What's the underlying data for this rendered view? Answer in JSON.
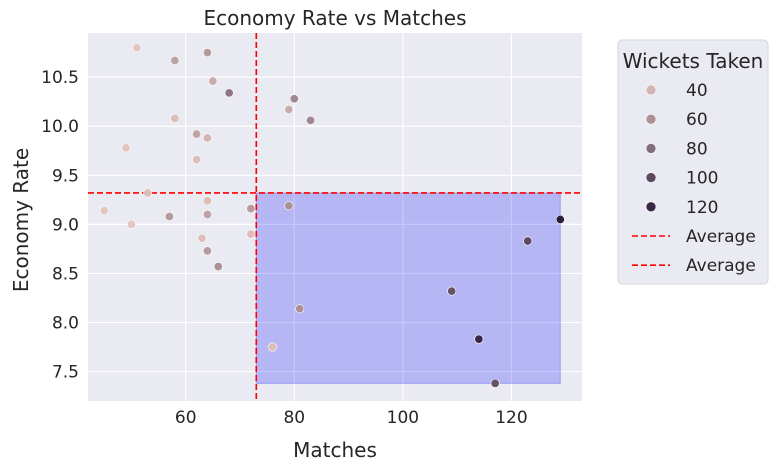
{
  "chart_data": {
    "type": "scatter",
    "title": "Economy Rate vs Matches",
    "xlabel": "Matches",
    "ylabel": "Economy Rate",
    "xlim": [
      42,
      133
    ],
    "ylim": [
      7.2,
      10.95
    ],
    "x_ticks": [
      60,
      80,
      100,
      120
    ],
    "y_ticks": [
      7.5,
      8.0,
      8.5,
      9.0,
      9.5,
      10.0,
      10.5
    ],
    "y_tick_labels": [
      "7.5",
      "8.0",
      "8.5",
      "9.0",
      "9.5",
      "10.0",
      "10.5"
    ],
    "grid": true,
    "hue": "Wickets Taken",
    "hue_range": [
      25,
      125
    ],
    "colors": {
      "background": "#eaeaf2",
      "grid": "#ffffff",
      "average_line": "#ff0000",
      "highlight_fill": "#0000ff",
      "hue_low": "#efcfc6",
      "hue_high": "#2d1e3e"
    },
    "average_x": 73,
    "average_y": 9.32,
    "highlight_region": {
      "x": [
        73,
        129
      ],
      "y": [
        7.38,
        9.32
      ]
    },
    "points": [
      {
        "x": 51,
        "y": 10.8,
        "w": 30
      },
      {
        "x": 58,
        "y": 10.67,
        "w": 50
      },
      {
        "x": 64,
        "y": 10.75,
        "w": 55
      },
      {
        "x": 65,
        "y": 10.46,
        "w": 45
      },
      {
        "x": 68,
        "y": 10.34,
        "w": 75
      },
      {
        "x": 58,
        "y": 10.08,
        "w": 35
      },
      {
        "x": 62,
        "y": 9.92,
        "w": 50
      },
      {
        "x": 64,
        "y": 9.88,
        "w": 40
      },
      {
        "x": 49,
        "y": 9.78,
        "w": 30
      },
      {
        "x": 62,
        "y": 9.66,
        "w": 35
      },
      {
        "x": 80,
        "y": 10.28,
        "w": 65
      },
      {
        "x": 79,
        "y": 10.17,
        "w": 45
      },
      {
        "x": 83,
        "y": 10.06,
        "w": 65
      },
      {
        "x": 53,
        "y": 9.32,
        "w": 35
      },
      {
        "x": 45,
        "y": 9.14,
        "w": 30
      },
      {
        "x": 57,
        "y": 9.08,
        "w": 55
      },
      {
        "x": 64,
        "y": 9.24,
        "w": 35
      },
      {
        "x": 64,
        "y": 9.1,
        "w": 50
      },
      {
        "x": 72,
        "y": 9.16,
        "w": 55
      },
      {
        "x": 79,
        "y": 9.19,
        "w": 60
      },
      {
        "x": 50,
        "y": 9.0,
        "w": 30
      },
      {
        "x": 63,
        "y": 8.86,
        "w": 35
      },
      {
        "x": 72,
        "y": 8.9,
        "w": 35
      },
      {
        "x": 64,
        "y": 8.73,
        "w": 55
      },
      {
        "x": 66,
        "y": 8.57,
        "w": 60
      },
      {
        "x": 81,
        "y": 8.14,
        "w": 60
      },
      {
        "x": 76,
        "y": 7.75,
        "w": 35
      },
      {
        "x": 109,
        "y": 8.32,
        "w": 95
      },
      {
        "x": 123,
        "y": 8.83,
        "w": 100
      },
      {
        "x": 129,
        "y": 9.05,
        "w": 125
      },
      {
        "x": 114,
        "y": 7.83,
        "w": 120
      },
      {
        "x": 117,
        "y": 7.38,
        "w": 95
      }
    ],
    "legend": {
      "title": "Wickets Taken",
      "placement": "outside-right",
      "hue_entries": [
        {
          "label": "40",
          "w": 40
        },
        {
          "label": "60",
          "w": 60
        },
        {
          "label": "80",
          "w": 80
        },
        {
          "label": "100",
          "w": 100
        },
        {
          "label": "120",
          "w": 120
        }
      ],
      "line_entries": [
        {
          "label": "Average"
        },
        {
          "label": "Average"
        }
      ]
    }
  }
}
